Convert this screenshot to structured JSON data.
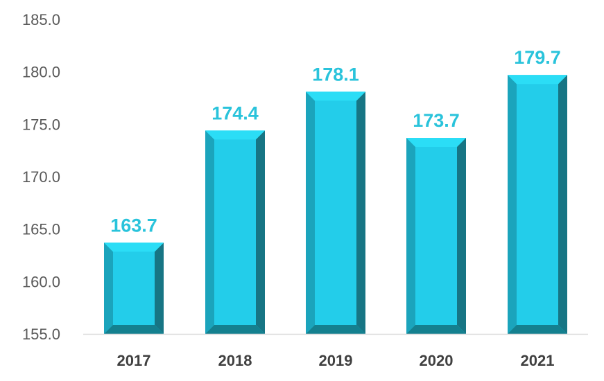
{
  "chart_data": {
    "type": "bar",
    "title": "",
    "xlabel": "",
    "ylabel": "",
    "categories": [
      "2017",
      "2018",
      "2019",
      "2020",
      "2021"
    ],
    "values": [
      163.7,
      174.4,
      178.1,
      173.7,
      179.7
    ],
    "data_labels": [
      "163.7",
      "174.4",
      "178.1",
      "173.7",
      "179.7"
    ],
    "ylim": [
      155.0,
      185.0
    ],
    "ytick_values": [
      155,
      160,
      165,
      170,
      175,
      180,
      185
    ],
    "ytick_labels": [
      "155.0",
      "160.0",
      "165.0",
      "170.0",
      "175.0",
      "180.0",
      "185.0"
    ],
    "grid": false,
    "legend": "none",
    "colors": {
      "bar_face": "#23CDEA",
      "bar_left_bevel": "#1BA4BC",
      "bar_right_bevel": "#177584",
      "bar_top_bevel": "#2BDDF6",
      "bar_bottom_bevel": "#14808F",
      "data_label": "#29C3DB",
      "axis_line": "#D9D9D9"
    }
  }
}
